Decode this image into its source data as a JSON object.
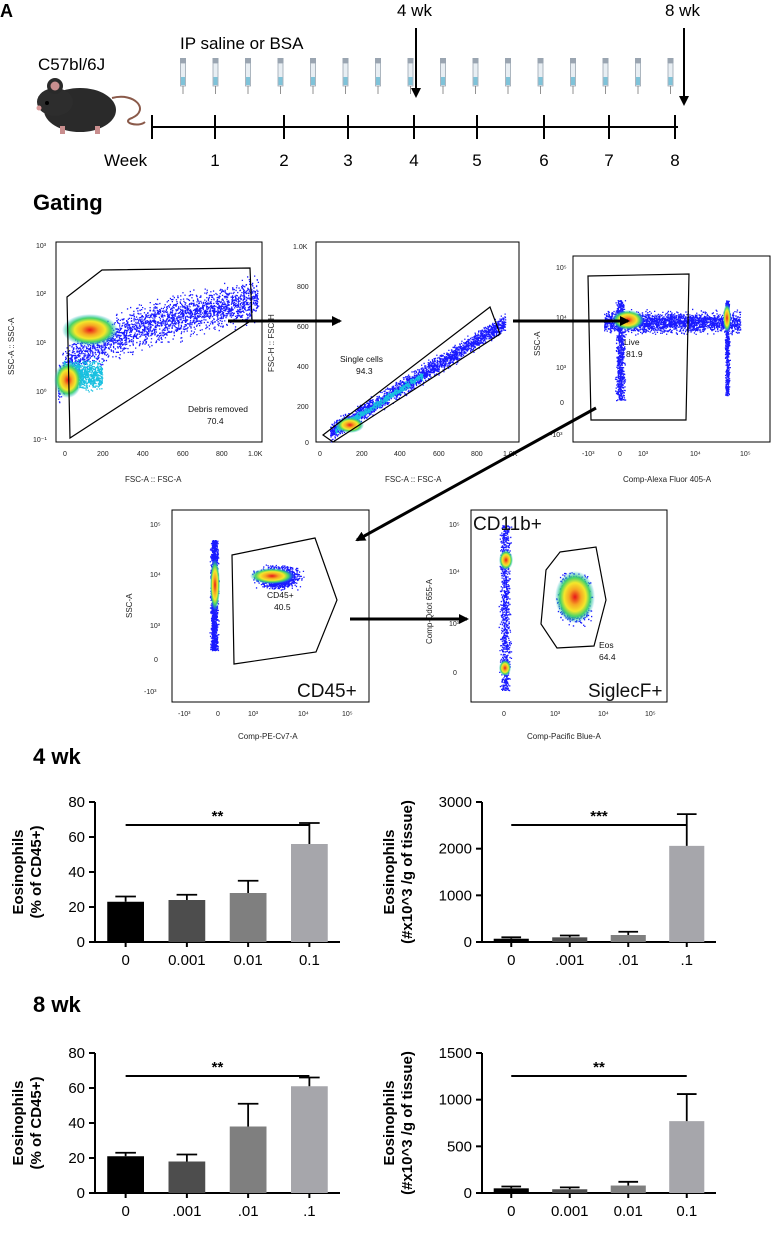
{
  "panel_letter": "A",
  "timeline": {
    "strain": "C57bl/6J",
    "treatment": "IP saline or BSA",
    "week_label": "Week",
    "weeks": [
      "1",
      "2",
      "3",
      "4",
      "5",
      "6",
      "7",
      "8"
    ],
    "marker_4wk": "4 wk",
    "marker_8wk": "8 wk"
  },
  "gating": {
    "title": "Gating",
    "plot1": {
      "y_axis": "SSC-A :: SSC-A",
      "x_axis": "FSC-A :: FSC-A",
      "y_ticks": [
        "10³",
        "10²",
        "10¹",
        "10⁰",
        "10⁻¹"
      ],
      "x_ticks": [
        "0",
        "200",
        "400",
        "600",
        "800",
        "1.0K"
      ],
      "gate_name": "Debris removed",
      "gate_value": "70.4"
    },
    "plot2": {
      "y_axis": "FSC-H :: FSC-H",
      "x_axis": "FSC-A :: FSC-A",
      "y_ticks": [
        "1.0K",
        "800",
        "600",
        "400",
        "200",
        "0"
      ],
      "x_ticks": [
        "0",
        "200",
        "400",
        "600",
        "800",
        "1.0K"
      ],
      "gate_name": "Single cells",
      "gate_value": "94.3"
    },
    "plot3": {
      "y_axis": "SSC-A",
      "x_axis": "Comp-Alexa Fluor 405-A",
      "y_ticks": [
        "10⁵",
        "10⁴",
        "10³",
        "0",
        "-10³"
      ],
      "x_ticks": [
        "-10³",
        "0",
        "10³",
        "10⁴",
        "10⁵"
      ],
      "gate_name": "Live",
      "gate_value": "81.9"
    },
    "plot4": {
      "y_axis": "SSC-A",
      "x_axis": "Comp-PE-Cv7-A",
      "y_ticks": [
        "10⁵",
        "10⁴",
        "10³",
        "0",
        "-10³"
      ],
      "x_ticks": [
        "-10³",
        "0",
        "10³",
        "10⁴",
        "10⁵"
      ],
      "gate_name": "CD45+",
      "gate_value": "40.5",
      "corner_label": "CD45+"
    },
    "plot5": {
      "y_axis": "Comp-Qdot 655-A",
      "x_axis": "Comp-Pacific Blue-A",
      "y_ticks": [
        "10⁵",
        "10⁴",
        "10³",
        "0"
      ],
      "x_ticks": [
        "0",
        "10³",
        "10⁴",
        "10⁵"
      ],
      "gate_name": "Eos",
      "gate_value": "64.4",
      "top_label": "CD11b+",
      "corner_label": "SiglecF+"
    }
  },
  "sections": {
    "wk4": "4 wk",
    "wk8": "8 wk"
  },
  "chart_data": [
    {
      "id": "c4a",
      "type": "bar",
      "section": "4 wk",
      "ylabel_line1": "Eosinophils",
      "ylabel_line2": "(% of CD45+)",
      "categories": [
        "0",
        "0.001",
        "0.01",
        "0.1"
      ],
      "values": [
        23,
        24,
        28,
        56
      ],
      "errors": [
        3,
        3,
        7,
        12
      ],
      "ylim": [
        0,
        80
      ],
      "yticks": [
        "0",
        "20",
        "40",
        "60",
        "80"
      ],
      "significance": "**",
      "bar_colors": [
        "#000000",
        "#4d4d4d",
        "#7f7f7f",
        "#a6a6ab"
      ]
    },
    {
      "id": "c4b",
      "type": "bar",
      "section": "4 wk",
      "ylabel_line1": "Eosinophils",
      "ylabel_line2": "(#x10^3 /g of tissue)",
      "categories": [
        "0",
        ".001",
        ".01",
        ".1"
      ],
      "values": [
        70,
        100,
        150,
        2060
      ],
      "errors": [
        30,
        40,
        70,
        680
      ],
      "ylim": [
        0,
        3000
      ],
      "yticks": [
        "0",
        "1000",
        "2000",
        "3000"
      ],
      "significance": "***",
      "bar_colors": [
        "#000000",
        "#4d4d4d",
        "#7f7f7f",
        "#a6a6ab"
      ]
    },
    {
      "id": "c8a",
      "type": "bar",
      "section": "8 wk",
      "ylabel_line1": "Eosinophils",
      "ylabel_line2": "(% of CD45+)",
      "categories": [
        "0",
        ".001",
        ".01",
        ".1"
      ],
      "values": [
        21,
        18,
        38,
        61
      ],
      "errors": [
        2,
        4,
        13,
        5
      ],
      "ylim": [
        0,
        80
      ],
      "yticks": [
        "0",
        "20",
        "40",
        "60",
        "80"
      ],
      "significance": "**",
      "bar_colors": [
        "#000000",
        "#4d4d4d",
        "#7f7f7f",
        "#a6a6ab"
      ]
    },
    {
      "id": "c8b",
      "type": "bar",
      "section": "8 wk",
      "ylabel_line1": "Eosinophils",
      "ylabel_line2": "(#x10^3 /g of tissue)",
      "categories": [
        "0",
        "0.001",
        "0.01",
        "0.1"
      ],
      "values": [
        50,
        40,
        80,
        770
      ],
      "errors": [
        20,
        20,
        40,
        290
      ],
      "ylim": [
        0,
        1500
      ],
      "yticks": [
        "0",
        "500",
        "1000",
        "1500"
      ],
      "significance": "**",
      "bar_colors": [
        "#000000",
        "#4d4d4d",
        "#7f7f7f",
        "#a6a6ab"
      ]
    }
  ]
}
